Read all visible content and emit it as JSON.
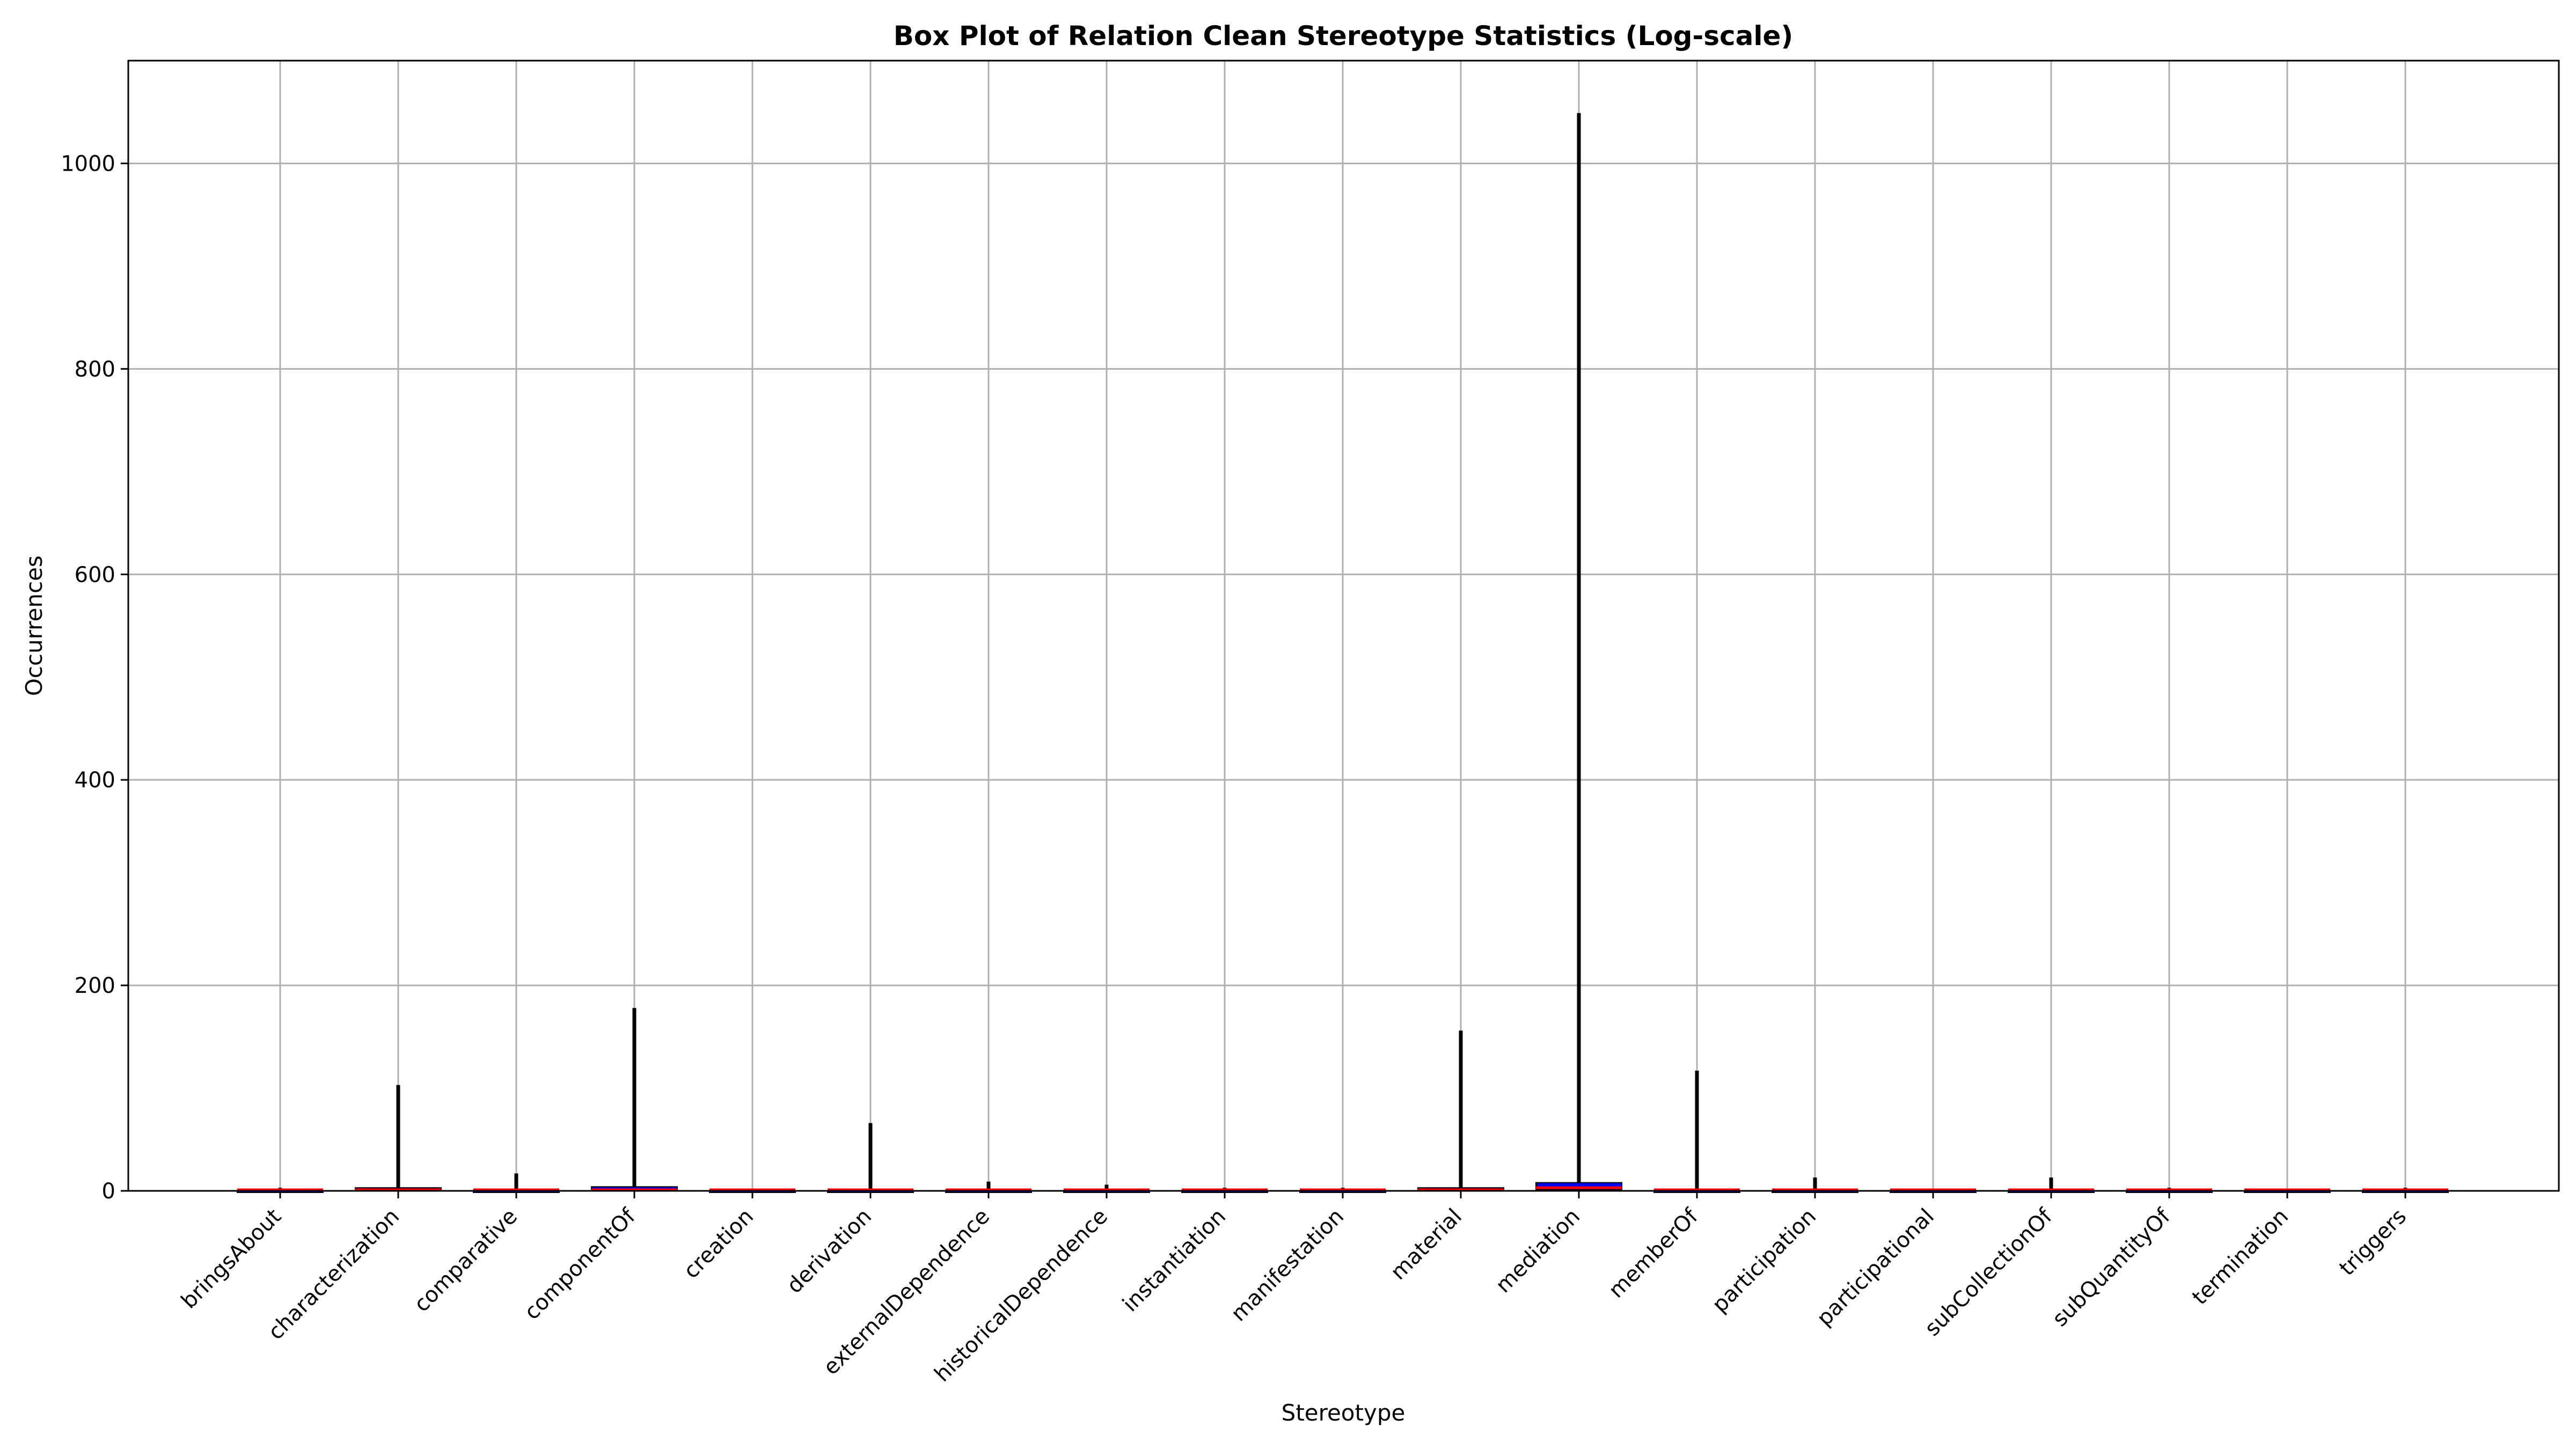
{
  "chart_data": {
    "type": "box",
    "title": "Box Plot of Relation Clean Stereotype Statistics (Log-scale)",
    "xlabel": "Stereotype",
    "ylabel": "Occurrences",
    "ylim": [
      0,
      1100
    ],
    "yticks": [
      0,
      200,
      400,
      600,
      800,
      1000
    ],
    "grid": true,
    "colors": {
      "box": "#0000ff",
      "median": "#ff0000",
      "whisker": "#000000",
      "grid": "#b0b0b0"
    },
    "categories": [
      "bringsAbout",
      "characterization",
      "comparative",
      "componentOf",
      "creation",
      "derivation",
      "externalDependence",
      "historicalDependence",
      "instantiation",
      "manifestation",
      "material",
      "mediation",
      "memberOf",
      "participation",
      "participational",
      "subCollectionOf",
      "subQuantityOf",
      "termination",
      "triggers"
    ],
    "boxes": [
      {
        "name": "bringsAbout",
        "min": 0,
        "q1": 0,
        "median": 0,
        "q3": 0,
        "max": 3
      },
      {
        "name": "characterization",
        "min": 0,
        "q1": 0,
        "median": 1,
        "q3": 3,
        "max": 103
      },
      {
        "name": "comparative",
        "min": 0,
        "q1": 0,
        "median": 0,
        "q3": 0,
        "max": 17
      },
      {
        "name": "componentOf",
        "min": 0,
        "q1": 0,
        "median": 1,
        "q3": 4,
        "max": 178
      },
      {
        "name": "creation",
        "min": 0,
        "q1": 0,
        "median": 0,
        "q3": 0,
        "max": 0
      },
      {
        "name": "derivation",
        "min": 0,
        "q1": 0,
        "median": 0,
        "q3": 0,
        "max": 66
      },
      {
        "name": "externalDependence",
        "min": 0,
        "q1": 0,
        "median": 0,
        "q3": 0,
        "max": 9
      },
      {
        "name": "historicalDependence",
        "min": 0,
        "q1": 0,
        "median": 0,
        "q3": 0,
        "max": 6
      },
      {
        "name": "instantiation",
        "min": 0,
        "q1": 0,
        "median": 0,
        "q3": 0,
        "max": 3
      },
      {
        "name": "manifestation",
        "min": 0,
        "q1": 0,
        "median": 0,
        "q3": 0,
        "max": 3
      },
      {
        "name": "material",
        "min": 0,
        "q1": 0,
        "median": 1,
        "q3": 3,
        "max": 156
      },
      {
        "name": "mediation",
        "min": 0,
        "q1": 1,
        "median": 3,
        "q3": 8,
        "max": 1049
      },
      {
        "name": "memberOf",
        "min": 0,
        "q1": 0,
        "median": 0,
        "q3": 0,
        "max": 117
      },
      {
        "name": "participation",
        "min": 0,
        "q1": 0,
        "median": 0,
        "q3": 0,
        "max": 13
      },
      {
        "name": "participational",
        "min": 0,
        "q1": 0,
        "median": 0,
        "q3": 0,
        "max": 0
      },
      {
        "name": "subCollectionOf",
        "min": 0,
        "q1": 0,
        "median": 0,
        "q3": 0,
        "max": 13
      },
      {
        "name": "subQuantityOf",
        "min": 0,
        "q1": 0,
        "median": 0,
        "q3": 0,
        "max": 3
      },
      {
        "name": "termination",
        "min": 0,
        "q1": 0,
        "median": 0,
        "q3": 0,
        "max": 0
      },
      {
        "name": "triggers",
        "min": 0,
        "q1": 0,
        "median": 0,
        "q3": 0,
        "max": 3
      }
    ]
  }
}
